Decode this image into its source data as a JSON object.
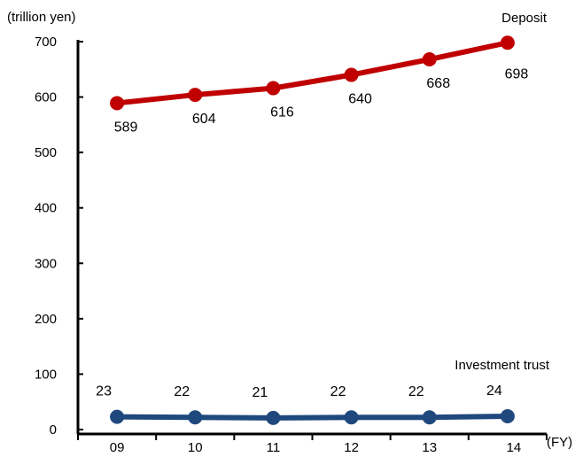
{
  "chart_data": {
    "type": "line",
    "y_unit_label": "(trillion yen)",
    "x_unit_label": "(FY)",
    "categories": [
      "09",
      "10",
      "11",
      "12",
      "13",
      "14"
    ],
    "y_ticks": [
      "0",
      "100",
      "200",
      "300",
      "400",
      "500",
      "600",
      "700"
    ],
    "ylim": [
      0,
      700
    ],
    "grid": false,
    "legend": "none (series labeled directly on chart)",
    "series": [
      {
        "name": "Deposit",
        "color": "#c00000",
        "values": [
          589,
          604,
          616,
          640,
          668,
          698
        ],
        "labels": [
          "589",
          "604",
          "616",
          "640",
          "668",
          "698"
        ]
      },
      {
        "name": "Investment trust",
        "color": "#1f497d",
        "values": [
          23,
          22,
          21,
          22,
          22,
          24
        ],
        "labels": [
          "23",
          "22",
          "21",
          "22",
          "22",
          "24"
        ]
      }
    ]
  }
}
